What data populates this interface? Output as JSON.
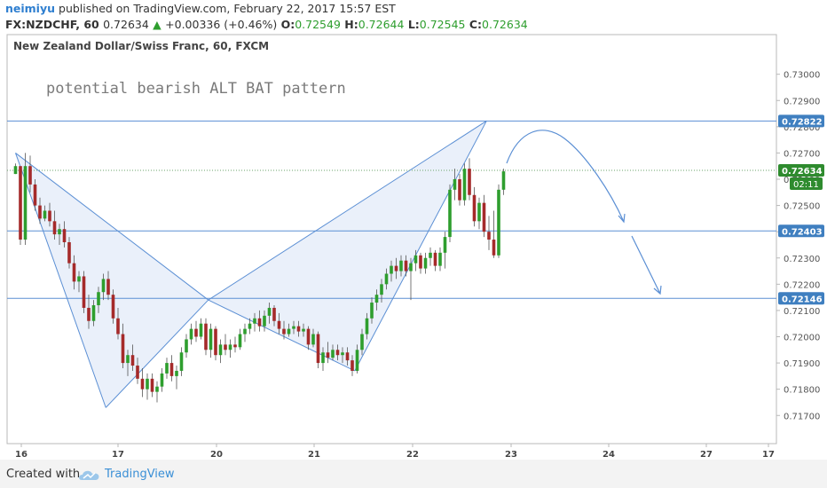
{
  "header": {
    "user": "neimiyu",
    "published_text": "published on TradingView.com, February 22, 2017 15:57 EST",
    "symbol": "FX:NZDCHF, 60",
    "last": "0.72634",
    "change_arrow": "▲",
    "change": "+0.00336 (+0.46%)",
    "o_label": "O:",
    "o_value": "0.72549",
    "h_label": "H:",
    "h_value": "0.72644",
    "l_label": "L:",
    "l_value": "0.72545",
    "c_label": "C:",
    "c_value": "0.72634"
  },
  "colors": {
    "up": "#2e9e2e",
    "down": "#a52a2a",
    "line": "#5b8fd4",
    "price_tag": "#3f7fc0",
    "countdown_tag": "#2e8b2e",
    "fill": "#e8eef9"
  },
  "footer": {
    "created_with": "Created with",
    "brand": "TradingView"
  },
  "chart_data": {
    "type": "candlestick",
    "title": "New Zealand Dollar/Swiss Franc, 60, FXCM",
    "annotation": "potential bearish ALT BAT pattern",
    "x_ticks": [
      "16",
      "17",
      "20",
      "21",
      "22",
      "23",
      "24",
      "27",
      "17"
    ],
    "y_ticks": [
      "0.73000",
      "0.72900",
      "0.72800",
      "0.72700",
      "0.72600",
      "0.72500",
      "0.72400",
      "0.72300",
      "0.72200",
      "0.72100",
      "0.72000",
      "0.71900",
      "0.71800",
      "0.71700"
    ],
    "ylim": [
      0.7164,
      0.7308
    ],
    "horizontal_levels": [
      {
        "label": "0.72822",
        "value": 0.72822
      },
      {
        "label": "0.72403",
        "value": 0.72403
      },
      {
        "label": "0.72146",
        "value": 0.72146
      }
    ],
    "last_price": {
      "label": "0.72634",
      "value": 0.72634,
      "countdown": "02:11"
    },
    "pattern_points": {
      "X": {
        "time": 1.0,
        "price": 0.727
      },
      "A": {
        "time": 19.5,
        "price": 0.7173
      },
      "B": {
        "time": 40.5,
        "price": 0.7214
      },
      "C": {
        "time": 70.5,
        "price": 0.7187
      },
      "D": {
        "time": 97.5,
        "price": 0.72822
      }
    },
    "candles": [
      [
        0.7262,
        0.7266,
        0.7262,
        0.7265
      ],
      [
        0.7265,
        0.7265,
        0.7235,
        0.7237
      ],
      [
        0.7237,
        0.727,
        0.7235,
        0.7265
      ],
      [
        0.7265,
        0.7269,
        0.7255,
        0.7258
      ],
      [
        0.7258,
        0.726,
        0.7248,
        0.725
      ],
      [
        0.725,
        0.7253,
        0.7243,
        0.7245
      ],
      [
        0.7245,
        0.725,
        0.7244,
        0.7248
      ],
      [
        0.7248,
        0.7251,
        0.7242,
        0.7244
      ],
      [
        0.7244,
        0.7248,
        0.7237,
        0.7239
      ],
      [
        0.7239,
        0.7243,
        0.7235,
        0.7241
      ],
      [
        0.7241,
        0.7244,
        0.7234,
        0.7236
      ],
      [
        0.7236,
        0.7238,
        0.7226,
        0.7228
      ],
      [
        0.7228,
        0.7231,
        0.7218,
        0.7221
      ],
      [
        0.7221,
        0.7225,
        0.7217,
        0.7223
      ],
      [
        0.7223,
        0.7225,
        0.7209,
        0.7211
      ],
      [
        0.7211,
        0.7216,
        0.7203,
        0.7206
      ],
      [
        0.7206,
        0.7214,
        0.7204,
        0.7212
      ],
      [
        0.7212,
        0.7219,
        0.7209,
        0.7217
      ],
      [
        0.7217,
        0.7224,
        0.7214,
        0.7222
      ],
      [
        0.7222,
        0.7225,
        0.7214,
        0.7216
      ],
      [
        0.7216,
        0.7218,
        0.7205,
        0.7207
      ],
      [
        0.7207,
        0.7211,
        0.7199,
        0.7201
      ],
      [
        0.7201,
        0.7205,
        0.7188,
        0.719
      ],
      [
        0.719,
        0.7195,
        0.7185,
        0.7193
      ],
      [
        0.7193,
        0.7197,
        0.7187,
        0.7189
      ],
      [
        0.7189,
        0.7192,
        0.7182,
        0.7184
      ],
      [
        0.7184,
        0.7188,
        0.7177,
        0.718
      ],
      [
        0.718,
        0.7186,
        0.7176,
        0.7184
      ],
      [
        0.7184,
        0.7186,
        0.7177,
        0.7179
      ],
      [
        0.7179,
        0.7183,
        0.7175,
        0.7181
      ],
      [
        0.7181,
        0.7188,
        0.7179,
        0.7186
      ],
      [
        0.7186,
        0.7192,
        0.7184,
        0.719
      ],
      [
        0.719,
        0.7193,
        0.7183,
        0.7185
      ],
      [
        0.7185,
        0.7189,
        0.718,
        0.7187
      ],
      [
        0.7187,
        0.7196,
        0.7185,
        0.7194
      ],
      [
        0.7194,
        0.7201,
        0.7192,
        0.7199
      ],
      [
        0.7199,
        0.7205,
        0.7197,
        0.7203
      ],
      [
        0.7203,
        0.7206,
        0.7198,
        0.72
      ],
      [
        0.72,
        0.7207,
        0.7199,
        0.7205
      ],
      [
        0.7205,
        0.7207,
        0.7193,
        0.7195
      ],
      [
        0.7195,
        0.7205,
        0.7192,
        0.7203
      ],
      [
        0.7203,
        0.7204,
        0.7191,
        0.7193
      ],
      [
        0.7193,
        0.7199,
        0.719,
        0.7197
      ],
      [
        0.7197,
        0.7201,
        0.7193,
        0.7195
      ],
      [
        0.7195,
        0.7199,
        0.7192,
        0.7197
      ],
      [
        0.7197,
        0.72,
        0.7194,
        0.7196
      ],
      [
        0.7196,
        0.7203,
        0.7195,
        0.7201
      ],
      [
        0.7201,
        0.7205,
        0.7198,
        0.7203
      ],
      [
        0.7203,
        0.7207,
        0.7201,
        0.7205
      ],
      [
        0.7205,
        0.7209,
        0.7202,
        0.7207
      ],
      [
        0.7207,
        0.721,
        0.7202,
        0.7204
      ],
      [
        0.7204,
        0.721,
        0.7202,
        0.7208
      ],
      [
        0.7208,
        0.7213,
        0.7205,
        0.7211
      ],
      [
        0.7211,
        0.7212,
        0.7204,
        0.7206
      ],
      [
        0.7206,
        0.7209,
        0.7201,
        0.7203
      ],
      [
        0.7203,
        0.7206,
        0.7199,
        0.7201
      ],
      [
        0.7201,
        0.7205,
        0.72,
        0.7203
      ],
      [
        0.7203,
        0.7206,
        0.7201,
        0.7204
      ],
      [
        0.7204,
        0.7206,
        0.72,
        0.7202
      ],
      [
        0.7202,
        0.7205,
        0.72,
        0.7203
      ],
      [
        0.7203,
        0.7204,
        0.7195,
        0.7197
      ],
      [
        0.7197,
        0.7203,
        0.7196,
        0.7201
      ],
      [
        0.7201,
        0.7202,
        0.7188,
        0.719
      ],
      [
        0.719,
        0.7196,
        0.7187,
        0.7194
      ],
      [
        0.7194,
        0.7198,
        0.719,
        0.7192
      ],
      [
        0.7192,
        0.7197,
        0.7191,
        0.7195
      ],
      [
        0.7195,
        0.7197,
        0.7191,
        0.7193
      ],
      [
        0.7193,
        0.7196,
        0.719,
        0.7194
      ],
      [
        0.7194,
        0.7196,
        0.7189,
        0.7191
      ],
      [
        0.7191,
        0.7193,
        0.7185,
        0.7187
      ],
      [
        0.7187,
        0.7197,
        0.7186,
        0.7195
      ],
      [
        0.7195,
        0.7203,
        0.7193,
        0.7201
      ],
      [
        0.7201,
        0.7209,
        0.7199,
        0.7207
      ],
      [
        0.7207,
        0.7215,
        0.7205,
        0.7213
      ],
      [
        0.7213,
        0.7218,
        0.721,
        0.7216
      ],
      [
        0.7216,
        0.7222,
        0.7213,
        0.722
      ],
      [
        0.722,
        0.7226,
        0.7218,
        0.7224
      ],
      [
        0.7224,
        0.7229,
        0.7221,
        0.7227
      ],
      [
        0.7227,
        0.723,
        0.7222,
        0.7225
      ],
      [
        0.7225,
        0.7231,
        0.7223,
        0.7229
      ],
      [
        0.7229,
        0.7231,
        0.7223,
        0.7225
      ],
      [
        0.7225,
        0.723,
        0.7214,
        0.7228
      ],
      [
        0.7228,
        0.7233,
        0.7225,
        0.7231
      ],
      [
        0.7231,
        0.7232,
        0.7224,
        0.7226
      ],
      [
        0.7226,
        0.7232,
        0.7224,
        0.723
      ],
      [
        0.723,
        0.7234,
        0.7227,
        0.7232
      ],
      [
        0.7232,
        0.7233,
        0.7225,
        0.7227
      ],
      [
        0.7227,
        0.7234,
        0.7225,
        0.7232
      ],
      [
        0.7232,
        0.724,
        0.7226,
        0.7238
      ],
      [
        0.7238,
        0.7258,
        0.7236,
        0.7256
      ],
      [
        0.7256,
        0.7264,
        0.7252,
        0.726
      ],
      [
        0.726,
        0.7262,
        0.725,
        0.7252
      ],
      [
        0.7252,
        0.7266,
        0.725,
        0.7264
      ],
      [
        0.7264,
        0.7268,
        0.7252,
        0.7254
      ],
      [
        0.7254,
        0.7257,
        0.7242,
        0.7244
      ],
      [
        0.7244,
        0.7253,
        0.7241,
        0.7251
      ],
      [
        0.7251,
        0.7254,
        0.7238,
        0.724
      ],
      [
        0.724,
        0.7246,
        0.7233,
        0.7237
      ],
      [
        0.7237,
        0.7248,
        0.723,
        0.7231
      ],
      [
        0.7231,
        0.7258,
        0.723,
        0.7256
      ],
      [
        0.7256,
        0.7264,
        0.7254,
        0.7263
      ]
    ]
  }
}
